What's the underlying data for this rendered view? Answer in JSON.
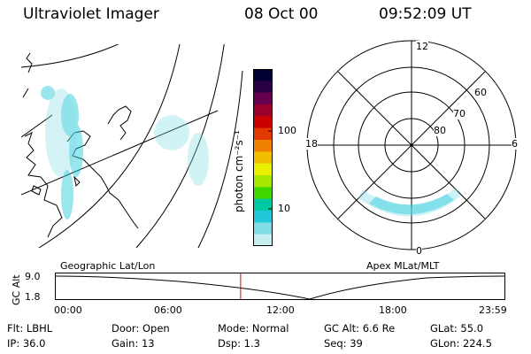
{
  "header": {
    "title": "Ultraviolet Imager",
    "date": "08 Oct 00",
    "time": "09:52:09 UT"
  },
  "colorbar": {
    "unit_label": "photon cm⁻²s⁻¹",
    "ticks": [
      "100",
      "10"
    ],
    "colors": [
      "#000033",
      "#2a0045",
      "#66004d",
      "#99002b",
      "#cc0000",
      "#e03a00",
      "#f08000",
      "#f0c000",
      "#e8f000",
      "#a8e800",
      "#40d800",
      "#00c8a0",
      "#20c8d8",
      "#80dde8",
      "#c8eef0"
    ]
  },
  "left_map": {
    "caption": "Geographic Lat/Lon"
  },
  "polar_plot": {
    "caption": "Apex MLat/MLT",
    "mlt_labels": {
      "top": "12",
      "left": "18",
      "right": "6",
      "bottom": "0"
    },
    "mlat_labels": [
      "60",
      "70",
      "80"
    ]
  },
  "altitude_strip": {
    "axis_label": "GC Alt",
    "y_ticks": [
      "9.0",
      "1.8"
    ],
    "x_ticks": [
      "00:00",
      "06:00",
      "12:00",
      "18:00",
      "23:59"
    ],
    "marker_color": "#e00000",
    "marker_fraction": 0.4112
  },
  "status": {
    "row1": {
      "flt": "Flt: LBHL",
      "door": "Door: Open",
      "mode": "Mode: Normal",
      "gc_alt": "GC Alt: 6.6 Re",
      "glat": "GLat:  55.0"
    },
    "row2": {
      "ip": "IP: 36.0",
      "gain": "Gain: 13",
      "dsp": "Dsp:    1.3",
      "seq": "Seq: 39",
      "glon": "GLon: 224.5"
    }
  }
}
